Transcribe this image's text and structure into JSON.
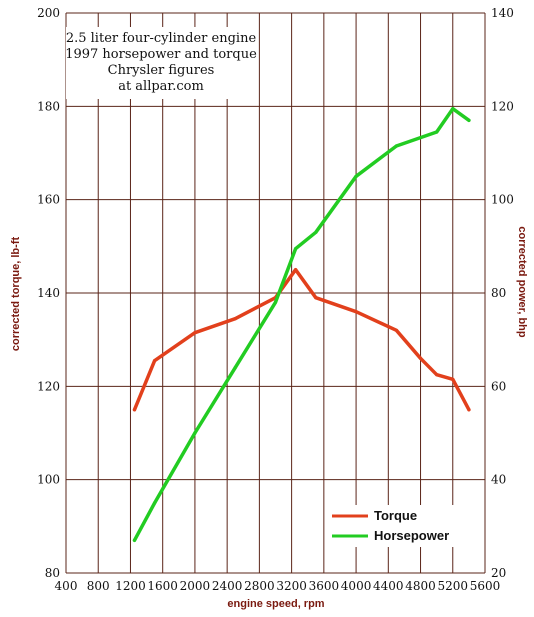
{
  "chart_data": {
    "type": "line",
    "title_lines": [
      "2.5 liter four-cylinder engine",
      "1997 horsepower and torque",
      "Chrysler figures",
      "at allpar.com"
    ],
    "xlabel": "engine speed, rpm",
    "ylabel_left": "corrected torque, lb-ft",
    "ylabel_right": "corrected power, bhp",
    "xlim": [
      400,
      5600
    ],
    "ylim_left": [
      80,
      200
    ],
    "ylim_right": [
      20,
      140
    ],
    "x_ticks": [
      400,
      800,
      1200,
      1600,
      2000,
      2400,
      2800,
      3200,
      3600,
      4000,
      4400,
      4800,
      5200,
      5600
    ],
    "y_ticks_left": [
      80,
      100,
      120,
      140,
      160,
      180,
      200
    ],
    "y_ticks_right": [
      20,
      40,
      60,
      80,
      100,
      120,
      140
    ],
    "grid": true,
    "legend_position": "bottom-right",
    "series": [
      {
        "name": "Torque",
        "axis": "left",
        "color": "#e2401c",
        "points": [
          [
            1250,
            115
          ],
          [
            1500,
            125.5
          ],
          [
            2000,
            131.5
          ],
          [
            2500,
            134.5
          ],
          [
            3000,
            139
          ],
          [
            3250,
            145
          ],
          [
            3500,
            139
          ],
          [
            4000,
            136
          ],
          [
            4500,
            132
          ],
          [
            4800,
            126
          ],
          [
            5000,
            122.5
          ],
          [
            5200,
            121.5
          ],
          [
            5400,
            115
          ]
        ]
      },
      {
        "name": "Horsepower",
        "axis": "right",
        "color": "#22cc22",
        "points": [
          [
            1250,
            27
          ],
          [
            1500,
            35
          ],
          [
            2000,
            50
          ],
          [
            2500,
            64
          ],
          [
            3000,
            78
          ],
          [
            3250,
            89.5
          ],
          [
            3500,
            93
          ],
          [
            4000,
            105
          ],
          [
            4500,
            111.5
          ],
          [
            5000,
            114.5
          ],
          [
            5200,
            119.5
          ],
          [
            5400,
            117
          ]
        ]
      }
    ]
  }
}
